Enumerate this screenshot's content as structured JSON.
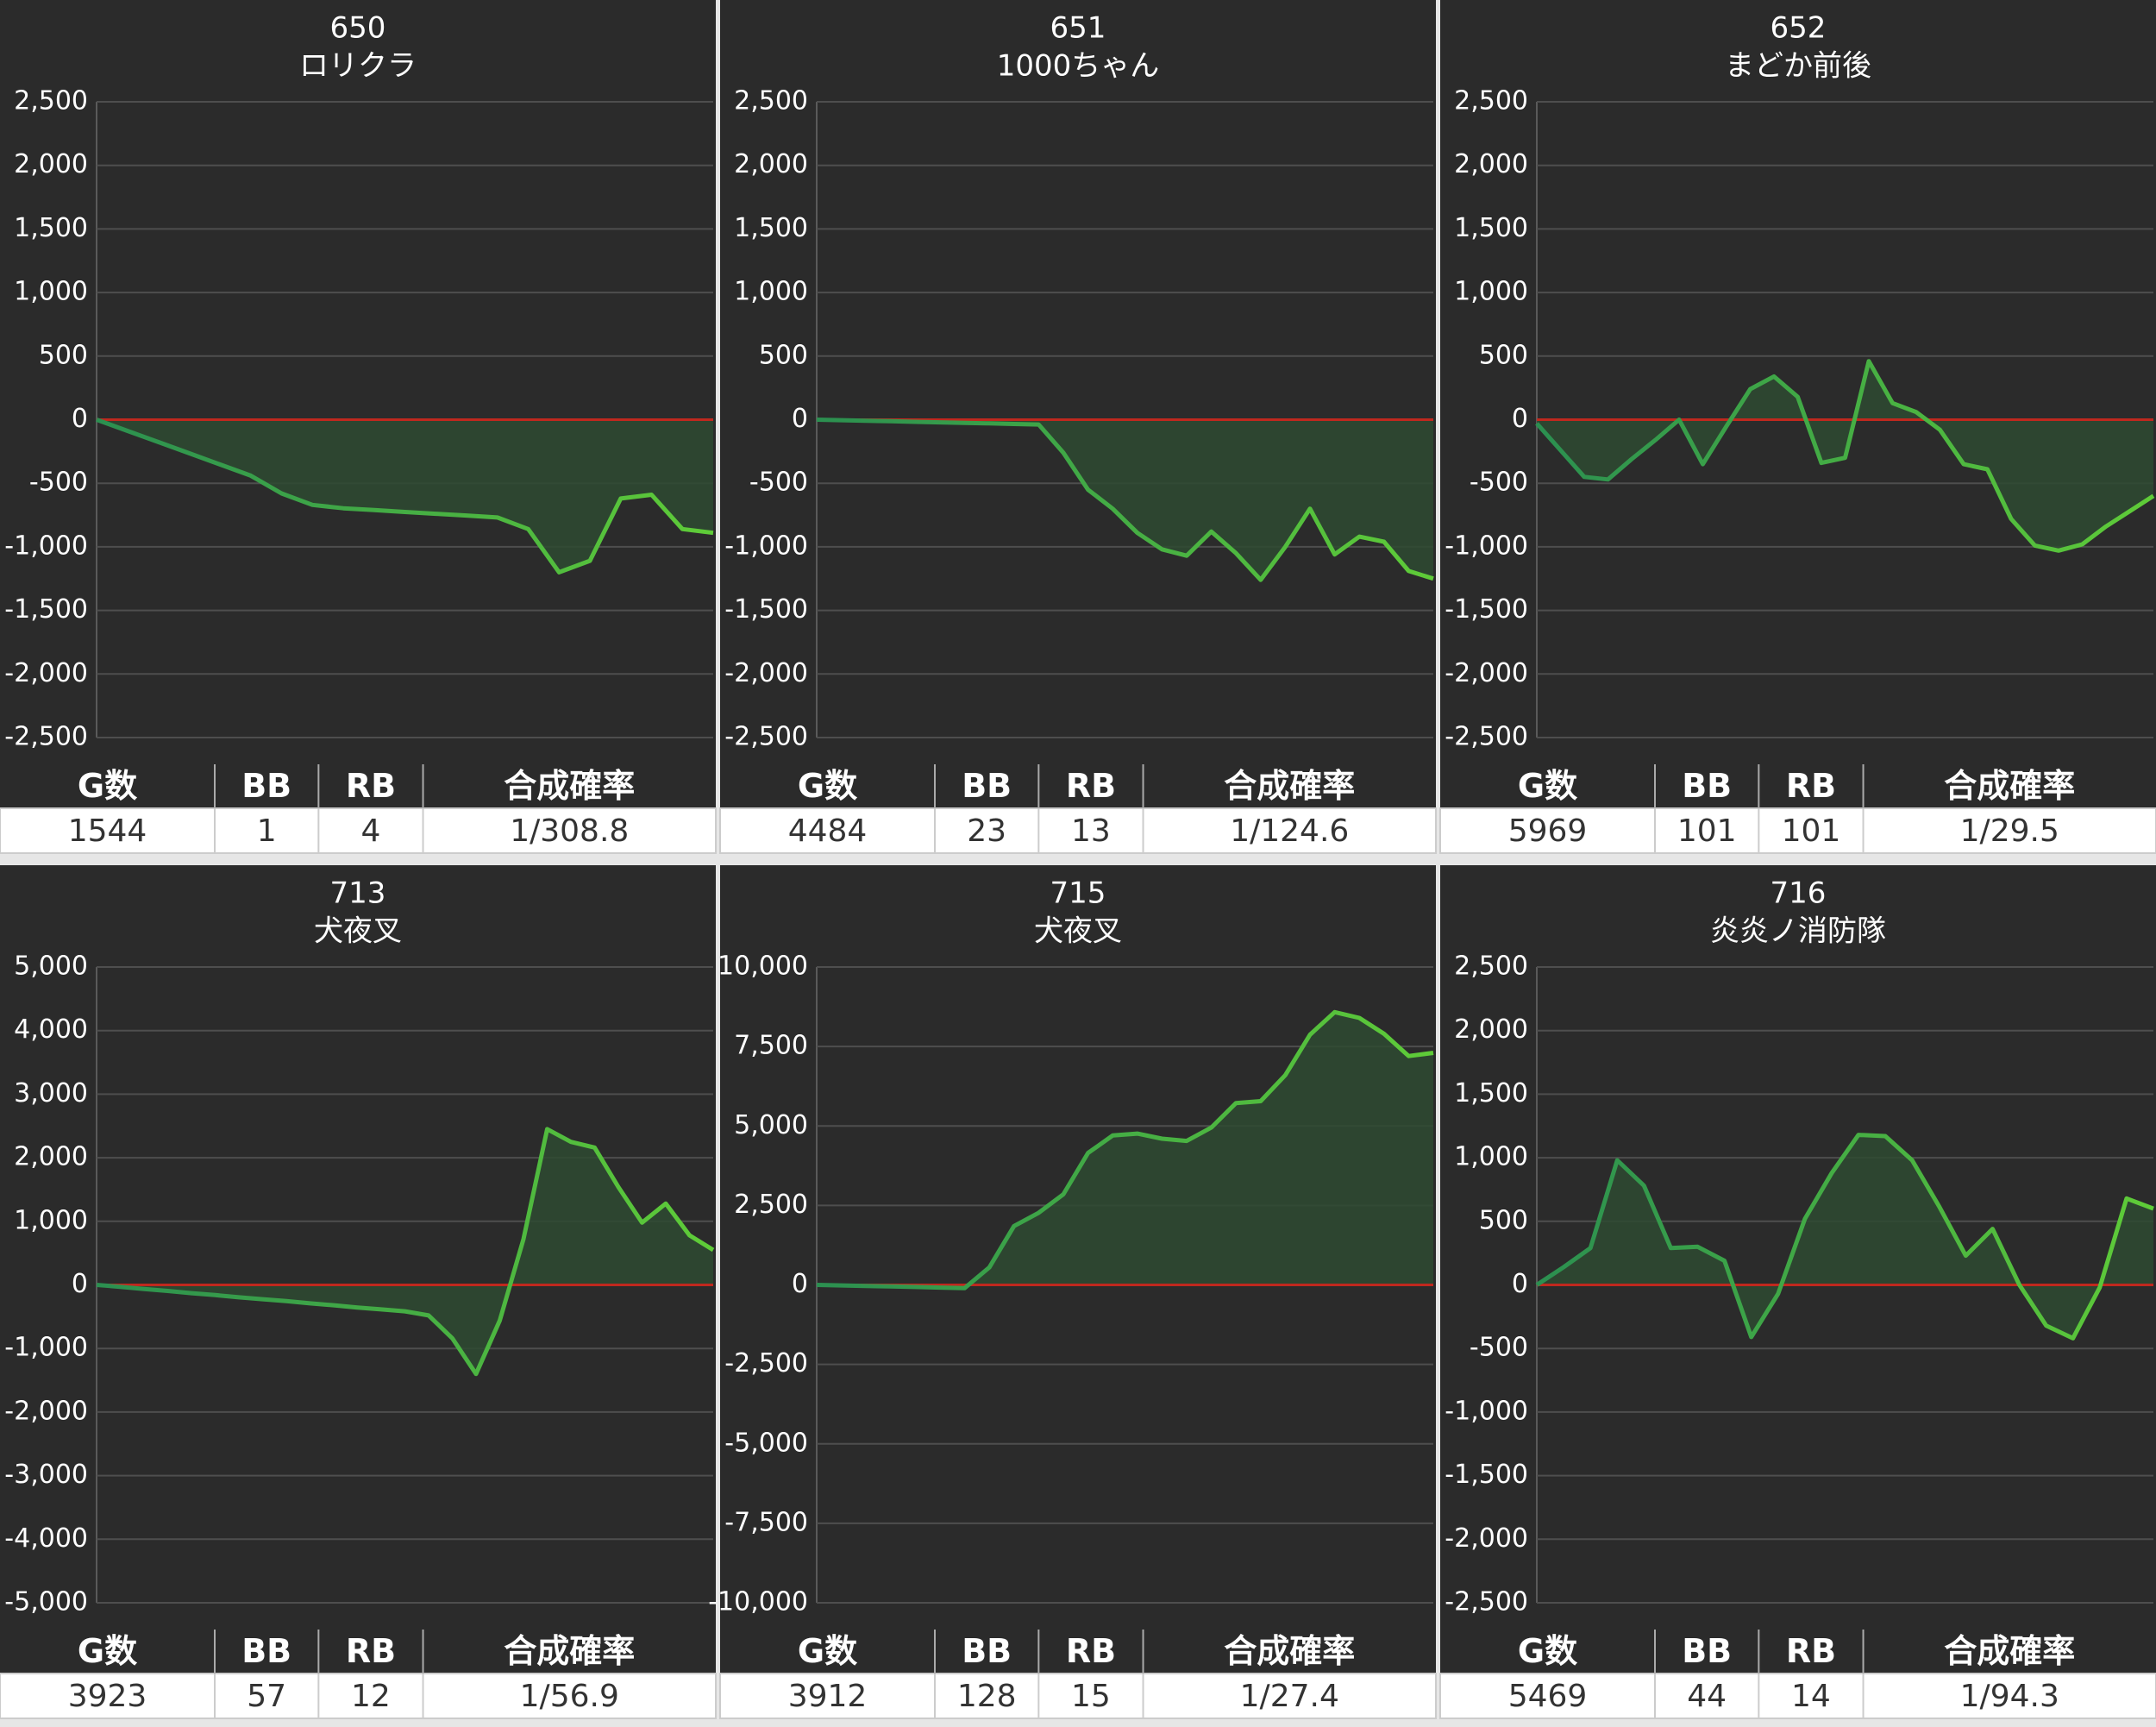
{
  "chart_data": [
    {
      "type": "line",
      "title": "650",
      "subtitle": "ロリクラ",
      "line_colors": [
        "#2b8f50",
        "#5fcc38"
      ],
      "area_color": "#2e4a31",
      "zero_line_color": "#c0281e",
      "grid": true,
      "values": [
        0,
        -88,
        -176,
        -264,
        -352,
        -440,
        -580,
        -670,
        -697,
        -711,
        -726,
        -740,
        -754,
        -769,
        -860,
        -1200,
        -1110,
        -620,
        -590,
        -860,
        -890
      ],
      "ylim": [
        -2500,
        2500
      ],
      "yticks": [
        {
          "value": -2500,
          "label": "-2,500"
        },
        {
          "value": -2000,
          "label": "-2,000"
        },
        {
          "value": -1500,
          "label": "-1,500"
        },
        {
          "value": -1000,
          "label": "-1,000"
        },
        -500,
        0,
        500,
        {
          "value": 1000,
          "label": "1,000"
        },
        {
          "value": 1500,
          "label": "1,500"
        },
        {
          "value": 2000,
          "label": "2,000"
        },
        {
          "value": 2500,
          "label": "2,500"
        }
      ]
    },
    {
      "type": "line",
      "title": "651",
      "subtitle": "1000ちゃん",
      "line_colors": [
        "#2b8f50",
        "#5fcc38"
      ],
      "area_color": "#2e4a31",
      "zero_line_color": "#c0281e",
      "grid": true,
      "values": [
        0,
        -4,
        -8,
        -12,
        -17,
        -21,
        -25,
        -29,
        -34,
        -38,
        -260,
        -550,
        -700,
        -890,
        -1020,
        -1070,
        -880,
        -1050,
        -1260,
        -1000,
        -700,
        -1060,
        -920,
        -960,
        -1190,
        -1250
      ],
      "ylim": [
        -2500,
        2500
      ],
      "yticks": [
        {
          "value": -2500,
          "label": "-2,500"
        },
        {
          "value": -2000,
          "label": "-2,000"
        },
        {
          "value": -1500,
          "label": "-1,500"
        },
        {
          "value": -1000,
          "label": "-1,000"
        },
        -500,
        0,
        500,
        {
          "value": 1000,
          "label": "1,000"
        },
        {
          "value": 1500,
          "label": "1,500"
        },
        {
          "value": 2000,
          "label": "2,000"
        },
        {
          "value": 2500,
          "label": "2,500"
        }
      ]
    },
    {
      "type": "line",
      "title": "652",
      "subtitle": "まどか前後",
      "line_colors": [
        "#2b8f50",
        "#5fcc38"
      ],
      "area_color": "#2e4a31",
      "zero_line_color": "#c0281e",
      "grid": true,
      "values": [
        -30,
        -240,
        -450,
        -470,
        -310,
        -160,
        0,
        -350,
        -50,
        240,
        340,
        180,
        -340,
        -300,
        460,
        130,
        60,
        -80,
        -350,
        -390,
        -780,
        -990,
        -1030,
        -980,
        -840,
        -720,
        -600
      ],
      "ylim": [
        -2500,
        2500
      ],
      "yticks": [
        {
          "value": -2500,
          "label": "-2,500"
        },
        {
          "value": -2000,
          "label": "-2,000"
        },
        {
          "value": -1500,
          "label": "-1,500"
        },
        {
          "value": -1000,
          "label": "-1,000"
        },
        -500,
        0,
        500,
        {
          "value": 1000,
          "label": "1,000"
        },
        {
          "value": 1500,
          "label": "1,500"
        },
        {
          "value": 2000,
          "label": "2,000"
        },
        {
          "value": 2500,
          "label": "2,500"
        }
      ]
    },
    {
      "type": "line",
      "title": "713",
      "subtitle": "犬夜叉",
      "line_colors": [
        "#2b8f50",
        "#5fcc38"
      ],
      "area_color": "#2e4a31",
      "zero_line_color": "#c0281e",
      "grid": true,
      "values": [
        0,
        -30,
        -65,
        -95,
        -130,
        -160,
        -195,
        -225,
        -255,
        -290,
        -320,
        -355,
        -385,
        -415,
        -480,
        -840,
        -1400,
        -560,
        720,
        2450,
        2250,
        2160,
        1540,
        980,
        1280,
        780,
        550
      ],
      "ylim": [
        -5000,
        5000
      ],
      "yticks": [
        {
          "value": -5000,
          "label": "-5,000"
        },
        {
          "value": -4000,
          "label": "-4,000"
        },
        {
          "value": -3000,
          "label": "-3,000"
        },
        {
          "value": -2000,
          "label": "-2,000"
        },
        {
          "value": -1000,
          "label": "-1,000"
        },
        0,
        {
          "value": 1000,
          "label": "1,000"
        },
        {
          "value": 2000,
          "label": "2,000"
        },
        {
          "value": 3000,
          "label": "3,000"
        },
        {
          "value": 4000,
          "label": "4,000"
        },
        {
          "value": 5000,
          "label": "5,000"
        }
      ]
    },
    {
      "type": "line",
      "title": "715",
      "subtitle": "犬夜叉",
      "line_colors": [
        "#2b8f50",
        "#5fcc38"
      ],
      "area_color": "#2e4a31",
      "zero_line_color": "#c0281e",
      "grid": true,
      "values": [
        0,
        -15,
        -35,
        -50,
        -65,
        -85,
        -100,
        550,
        1850,
        2270,
        2850,
        4150,
        4700,
        4760,
        4600,
        4530,
        4950,
        5720,
        5780,
        6600,
        7870,
        8580,
        8400,
        7900,
        7200,
        7300
      ],
      "ylim": [
        -10000,
        10000
      ],
      "yticks": [
        {
          "value": -10000,
          "label": "-10,000"
        },
        {
          "value": -7500,
          "label": "-7,500"
        },
        {
          "value": -5000,
          "label": "-5,000"
        },
        {
          "value": -2500,
          "label": "-2,500"
        },
        0,
        {
          "value": 2500,
          "label": "2,500"
        },
        {
          "value": 5000,
          "label": "5,000"
        },
        {
          "value": 7500,
          "label": "7,500"
        },
        {
          "value": 10000,
          "label": "10,000"
        }
      ]
    },
    {
      "type": "line",
      "title": "716",
      "subtitle": "炎炎ノ消防隊",
      "line_colors": [
        "#2b8f50",
        "#5fcc38"
      ],
      "area_color": "#2e4a31",
      "zero_line_color": "#c0281e",
      "grid": true,
      "values": [
        0,
        140,
        290,
        980,
        780,
        290,
        300,
        190,
        -410,
        -70,
        520,
        880,
        1180,
        1170,
        980,
        620,
        230,
        440,
        0,
        -320,
        -420,
        -20,
        680,
        600
      ],
      "ylim": [
        -2500,
        2500
      ],
      "yticks": [
        {
          "value": -2500,
          "label": "-2,500"
        },
        {
          "value": -2000,
          "label": "-2,000"
        },
        {
          "value": -1500,
          "label": "-1,500"
        },
        {
          "value": -1000,
          "label": "-1,000"
        },
        -500,
        0,
        500,
        {
          "value": 1000,
          "label": "1,000"
        },
        {
          "value": 1500,
          "label": "1,500"
        },
        {
          "value": 2000,
          "label": "2,000"
        },
        {
          "value": 2500,
          "label": "2,500"
        }
      ]
    }
  ],
  "tables": [
    {
      "headers": [
        "G数",
        "BB",
        "RB",
        "合成確率"
      ],
      "row": [
        1544,
        1,
        4,
        "1/308.8"
      ]
    },
    {
      "headers": [
        "G数",
        "BB",
        "RB",
        "合成確率"
      ],
      "row": [
        4484,
        23,
        13,
        "1/124.6"
      ]
    },
    {
      "headers": [
        "G数",
        "BB",
        "RB",
        "合成確率"
      ],
      "row": [
        5969,
        101,
        101,
        "1/29.5"
      ]
    },
    {
      "headers": [
        "G数",
        "BB",
        "RB",
        "合成確率"
      ],
      "row": [
        3923,
        57,
        12,
        "1/56.9"
      ]
    },
    {
      "headers": [
        "G数",
        "BB",
        "RB",
        "合成確率"
      ],
      "row": [
        3912,
        128,
        15,
        "1/27.4"
      ]
    },
    {
      "headers": [
        "G数",
        "BB",
        "RB",
        "合成確率"
      ],
      "row": [
        5469,
        44,
        14,
        "1/94.3"
      ]
    }
  ]
}
